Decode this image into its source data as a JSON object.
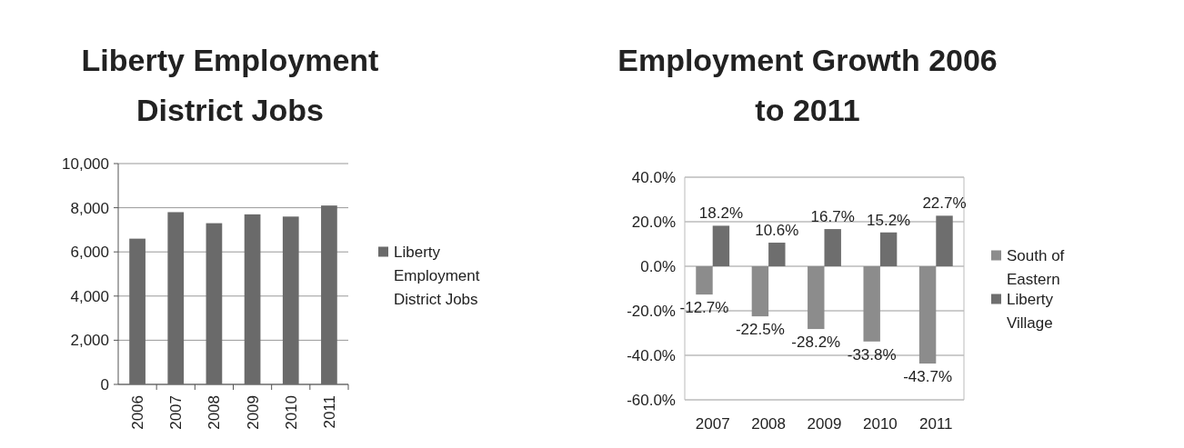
{
  "chart_data": [
    {
      "type": "bar",
      "title": "Liberty Employment District Jobs",
      "categories": [
        "2006",
        "2007",
        "2008",
        "2009",
        "2010",
        "2011"
      ],
      "series": [
        {
          "name": "Liberty Employment District Jobs",
          "color": "#6a6a6a",
          "values": [
            6600,
            7800,
            7300,
            7700,
            7600,
            8100
          ]
        }
      ],
      "ylim": [
        0,
        10000
      ],
      "yticks": [
        0,
        {
          "value": 2000,
          "label": "2,000"
        },
        {
          "value": 4000,
          "label": "4,000"
        },
        {
          "value": 6000,
          "label": "6,000"
        },
        {
          "value": 8000,
          "label": "8,000"
        },
        {
          "value": 10000,
          "label": "10,000"
        }
      ],
      "grid": "y",
      "legend": "right"
    },
    {
      "type": "bar",
      "title": "Employment Growth 2006 to 2011",
      "categories": [
        "2007",
        "2008",
        "2009",
        "2010",
        "2011"
      ],
      "series": [
        {
          "name": "South of Eastern",
          "color": "#8c8c8c",
          "values": [
            -12.7,
            -22.5,
            -28.2,
            -33.8,
            -43.7
          ],
          "value_labels": [
            "-12.7%",
            "-22.5%",
            "-28.2%",
            "-33.8%",
            "-43.7%"
          ]
        },
        {
          "name": "Liberty Village",
          "color": "#6e6e6e",
          "values": [
            18.2,
            10.6,
            16.7,
            15.2,
            22.7
          ],
          "value_labels": [
            "18.2%",
            "10.6%",
            "16.7%",
            "15.2%",
            "22.7%"
          ]
        }
      ],
      "ylim": [
        -60,
        40
      ],
      "yticks": [
        {
          "value": -60,
          "label": "-60.0%"
        },
        {
          "value": -40,
          "label": "-40.0%"
        },
        {
          "value": -20,
          "label": "-20.0%"
        },
        {
          "value": 0,
          "label": "0.0%"
        },
        {
          "value": 20,
          "label": "20.0%"
        },
        {
          "value": 40,
          "label": "40.0%"
        }
      ],
      "grid": "y",
      "legend": "right"
    }
  ]
}
